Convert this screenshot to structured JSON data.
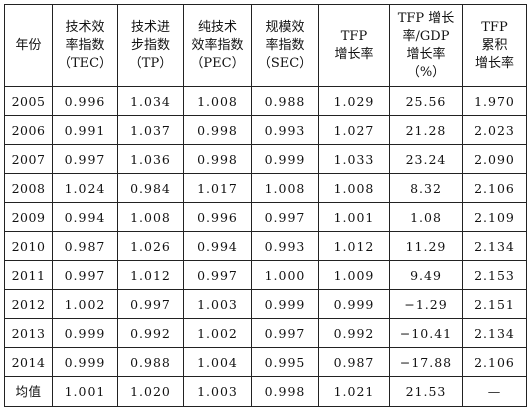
{
  "table": {
    "headers": [
      [
        "年份"
      ],
      [
        "技术效",
        "率指数",
        "（TEC）"
      ],
      [
        "技术进",
        "步指数",
        "（TP）"
      ],
      [
        "纯技术",
        "效率指数",
        "（PEC）"
      ],
      [
        "规模效",
        "率指数",
        "（SEC）"
      ],
      [
        "TFP",
        "增长率"
      ],
      [
        "TFP 增长",
        "率/GDP",
        "增长率",
        "（%）"
      ],
      [
        "TFP",
        "累积",
        "增长率"
      ]
    ],
    "rows": [
      [
        "2005",
        "0.996",
        "1.034",
        "1.008",
        "0.988",
        "1.029",
        "25.56",
        "1.970"
      ],
      [
        "2006",
        "0.991",
        "1.037",
        "0.998",
        "0.993",
        "1.027",
        "21.28",
        "2.023"
      ],
      [
        "2007",
        "0.997",
        "1.036",
        "0.998",
        "0.999",
        "1.033",
        "23.24",
        "2.090"
      ],
      [
        "2008",
        "1.024",
        "0.984",
        "1.017",
        "1.008",
        "1.008",
        "8.32",
        "2.106"
      ],
      [
        "2009",
        "0.994",
        "1.008",
        "0.996",
        "0.997",
        "1.001",
        "1.08",
        "2.109"
      ],
      [
        "2010",
        "0.987",
        "1.026",
        "0.994",
        "0.993",
        "1.012",
        "11.29",
        "2.134"
      ],
      [
        "2011",
        "0.997",
        "1.012",
        "0.997",
        "1.000",
        "1.009",
        "9.49",
        "2.153"
      ],
      [
        "2012",
        "1.002",
        "0.997",
        "1.003",
        "0.999",
        "0.999",
        "−1.29",
        "2.151"
      ],
      [
        "2013",
        "0.999",
        "0.992",
        "1.002",
        "0.997",
        "0.992",
        "−10.41",
        "2.134"
      ],
      [
        "2014",
        "0.999",
        "0.988",
        "1.004",
        "0.995",
        "0.987",
        "−17.88",
        "2.106"
      ]
    ],
    "mean_row": [
      "均值",
      "1.001",
      "1.020",
      "1.003",
      "0.998",
      "1.021",
      "21.53",
      "—"
    ]
  }
}
